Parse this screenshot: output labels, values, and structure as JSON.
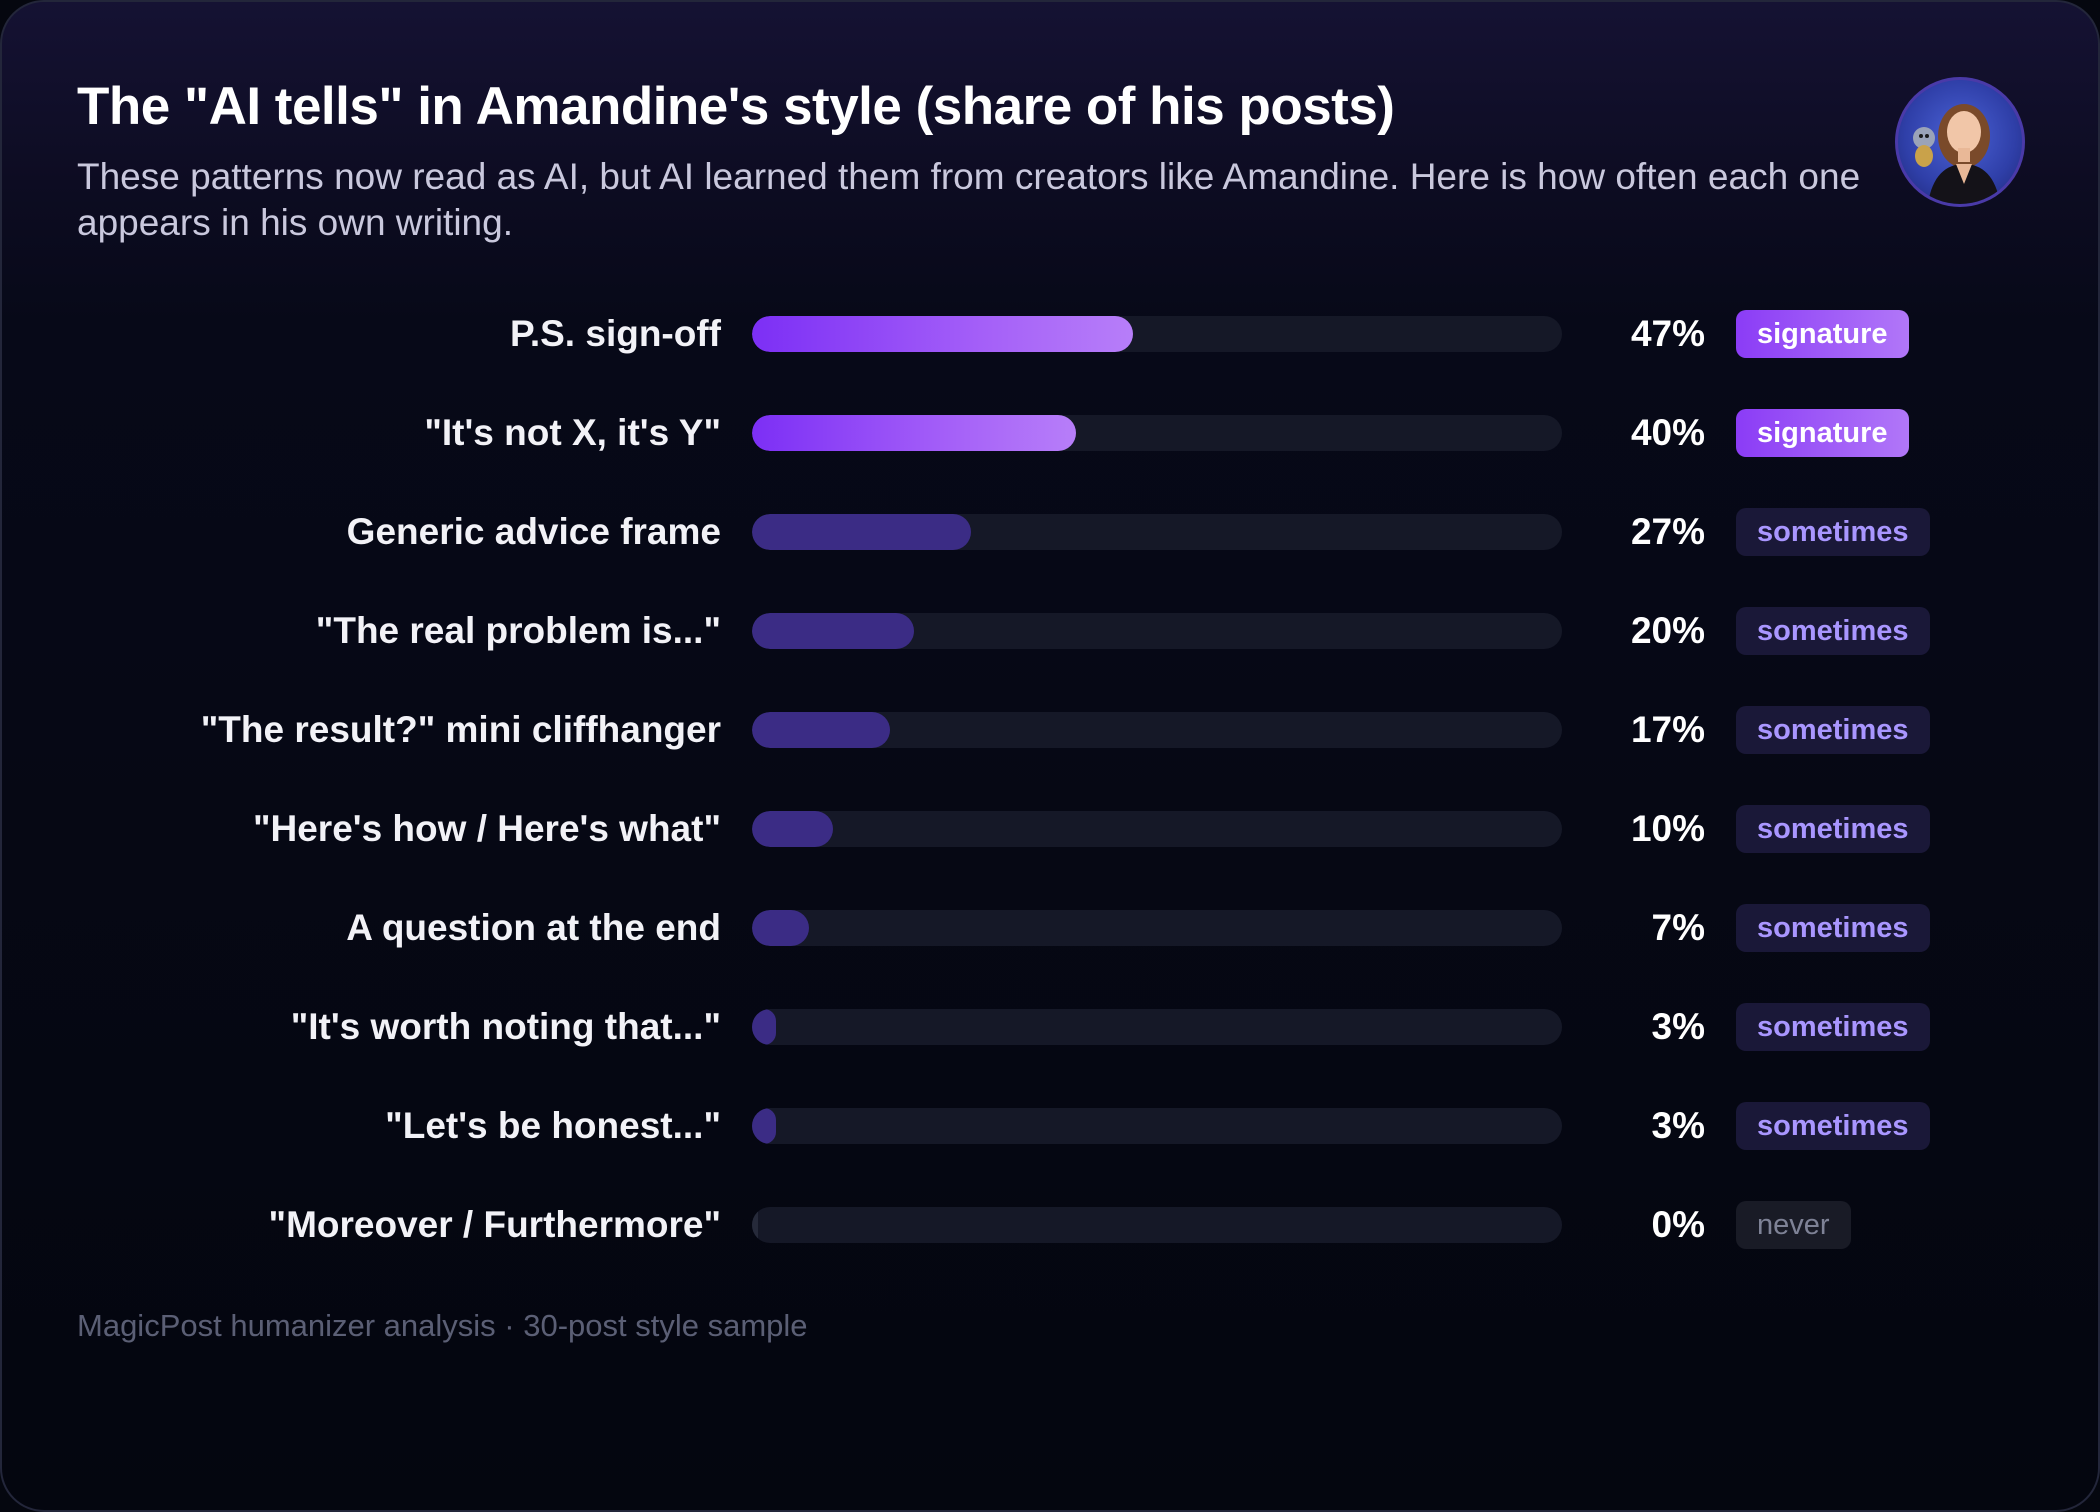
{
  "header": {
    "title": "The \"AI tells\" in Amandine's style (share of his posts)",
    "subtitle": "These patterns now read as AI, but AI learned them from creators like Amandine. Here is how often each one appears in his own writing."
  },
  "chart_data": {
    "type": "bar",
    "orientation": "horizontal",
    "xlim": [
      0,
      100
    ],
    "categories": [
      "P.S. sign-off",
      "\"It's not X, it's Y\"",
      "Generic advice frame",
      "\"The real problem is...\"",
      "\"The result?\" mini cliffhanger",
      "\"Here's how / Here's what\"",
      "A question at the end",
      "\"It's worth noting that...\"",
      "\"Let's be honest...\"",
      "\"Moreover / Furthermore\""
    ],
    "values": [
      47,
      40,
      27,
      20,
      17,
      10,
      7,
      3,
      3,
      0
    ],
    "value_labels": [
      "47%",
      "40%",
      "27%",
      "20%",
      "17%",
      "10%",
      "7%",
      "3%",
      "3%",
      "0%"
    ],
    "badges": [
      "signature",
      "signature",
      "sometimes",
      "sometimes",
      "sometimes",
      "sometimes",
      "sometimes",
      "sometimes",
      "sometimes",
      "never"
    ]
  },
  "colors": {
    "signature_bar": "#8b3cf6",
    "sometimes_bar": "#3b2c85",
    "track": "#151827",
    "background": "#04060f"
  },
  "footer": {
    "source": "MagicPost humanizer analysis · 30-post style sample"
  },
  "avatar": {
    "icon": "profile-photo-avatar"
  }
}
